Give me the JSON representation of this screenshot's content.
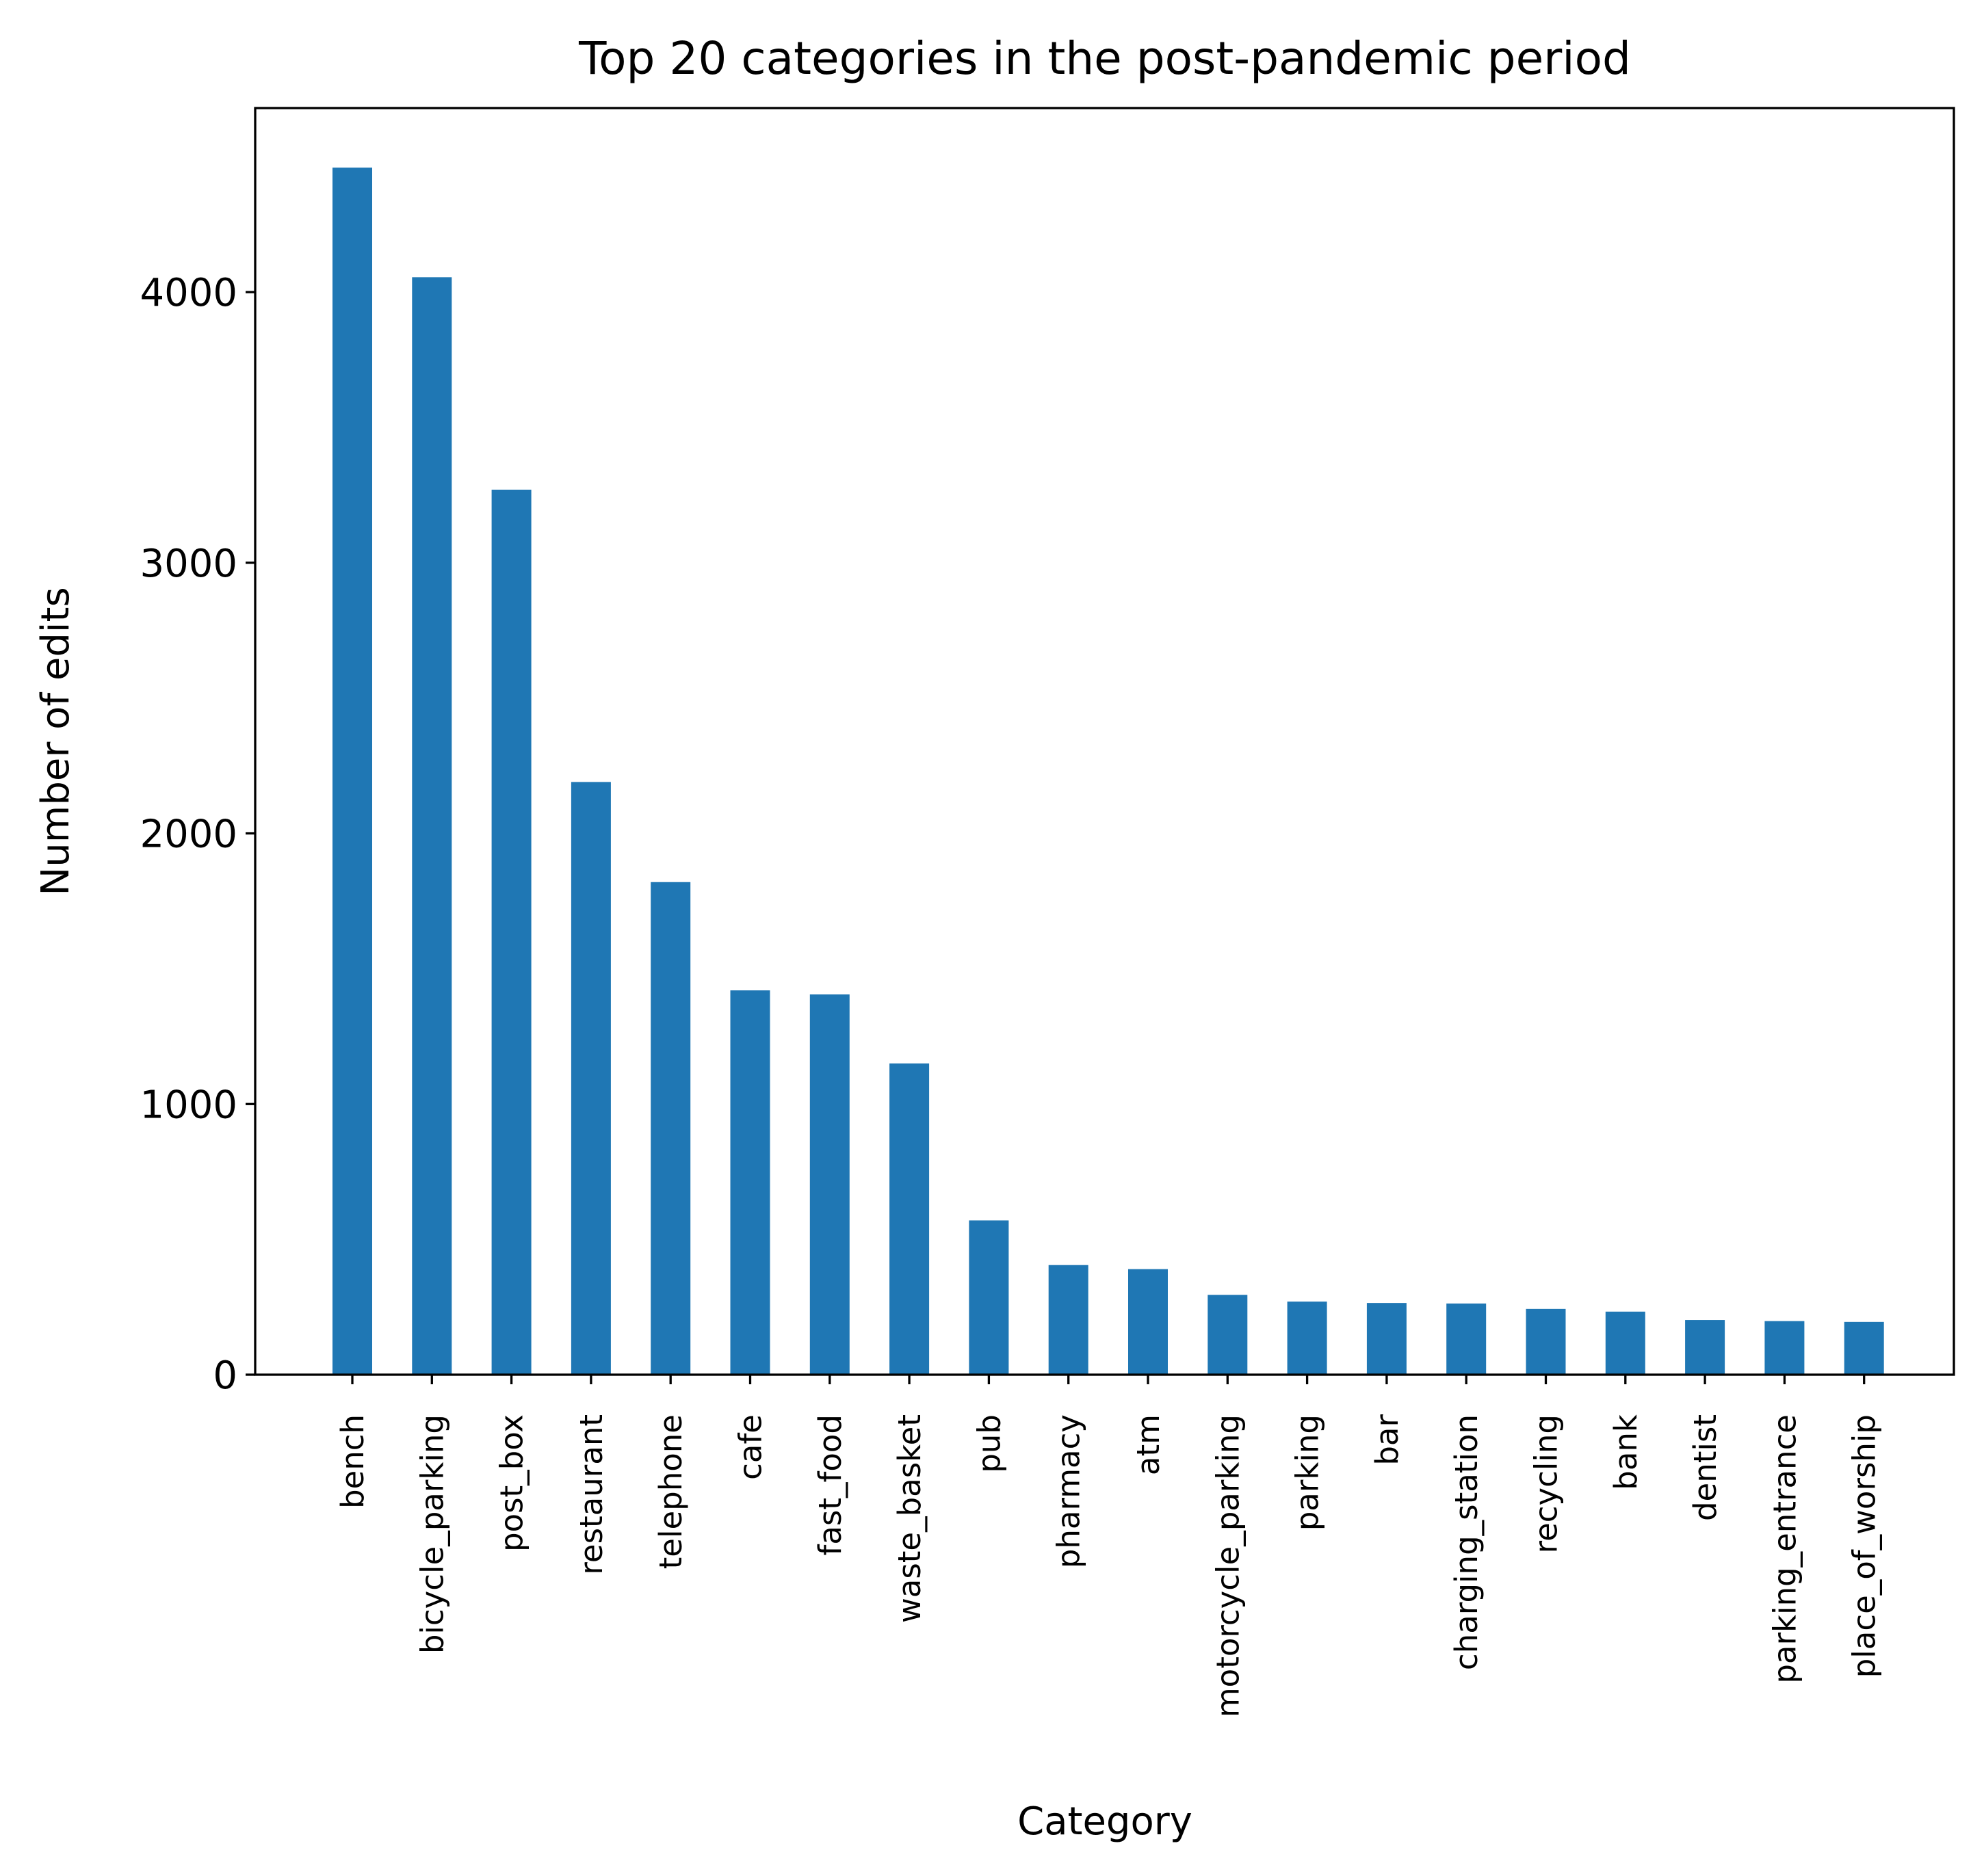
{
  "chart_data": {
    "type": "bar",
    "title": "Top 20 categories in the post-pandemic period",
    "xlabel": "Category",
    "ylabel": "Number of edits",
    "categories": [
      "bench",
      "bicycle_parking",
      "post_box",
      "restaurant",
      "telephone",
      "cafe",
      "fast_food",
      "waste_basket",
      "pub",
      "pharmacy",
      "atm",
      "motorcycle_parking",
      "parking",
      "bar",
      "charging_station",
      "recycling",
      "bank",
      "dentist",
      "parking_entrance",
      "place_of_worship"
    ],
    "values": [
      4460,
      4055,
      3270,
      2190,
      1820,
      1420,
      1405,
      1150,
      570,
      405,
      390,
      295,
      270,
      265,
      263,
      243,
      233,
      202,
      198,
      195
    ],
    "ylim": [
      0,
      4680
    ],
    "yticks": [
      0,
      1000,
      2000,
      3000,
      4000
    ],
    "ytick_labels": [
      "0",
      "1000",
      "2000",
      "3000",
      "4000"
    ],
    "bar_color": "#1f77b4",
    "grid": false,
    "legend": null
  }
}
